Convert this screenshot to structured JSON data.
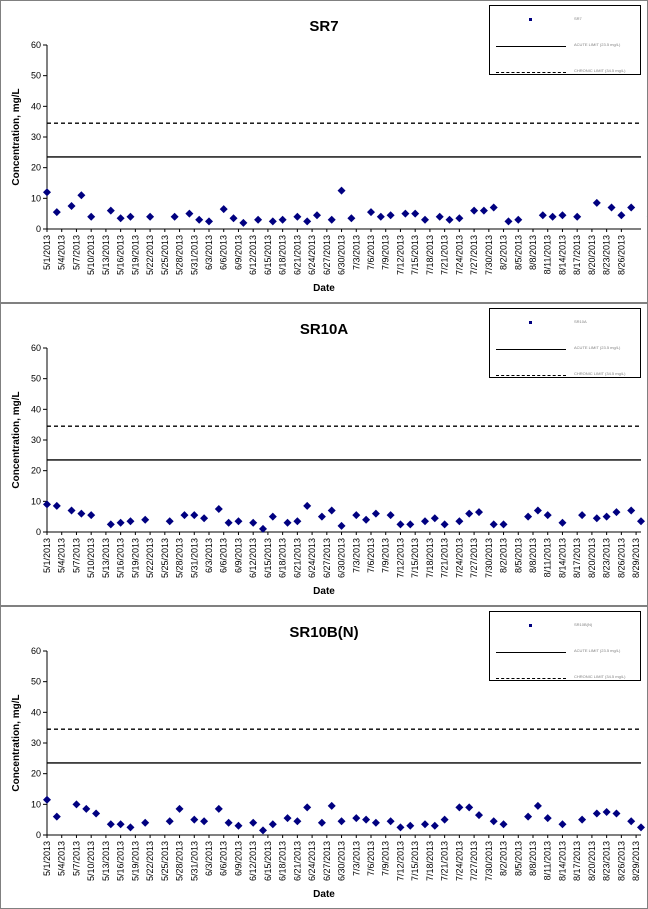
{
  "chart_data": [
    {
      "type": "scatter",
      "title": "SR7",
      "xlabel": "Date",
      "ylabel": "Concentration, mg/L",
      "ylim": [
        0,
        60
      ],
      "y_ticks": [
        "0",
        "10",
        "20",
        "30",
        "40",
        "50",
        "60"
      ],
      "x_tick_labels": [
        "5/1/2013",
        "5/4/2013",
        "5/7/2013",
        "5/10/2013",
        "5/13/2013",
        "5/16/2013",
        "5/19/2013",
        "5/22/2013",
        "5/25/2013",
        "5/28/2013",
        "5/31/2013",
        "6/3/2013",
        "6/6/2013",
        "6/9/2013",
        "6/12/2013",
        "6/15/2013",
        "6/18/2013",
        "6/21/2013",
        "6/24/2013",
        "6/27/2013",
        "6/30/2013",
        "7/3/2013",
        "7/6/2013",
        "7/9/2013",
        "7/12/2013",
        "7/15/2013",
        "7/18/2013",
        "7/21/2013",
        "7/24/2013",
        "7/27/2013",
        "7/30/2013",
        "8/2/2013",
        "8/5/2013",
        "8/8/2013",
        "8/11/2013",
        "8/14/2013",
        "8/17/2013",
        "8/20/2013",
        "8/23/2013",
        "8/26/2013"
      ],
      "x_range": [
        "5/1/2013",
        "8/30/2013"
      ],
      "marker_color": "#000080",
      "series": [
        {
          "points": [
            [
              "5/1/2013",
              12
            ],
            [
              "5/3/2013",
              5.5
            ],
            [
              "5/6/2013",
              7.5
            ],
            [
              "5/8/2013",
              11
            ],
            [
              "5/10/2013",
              4
            ],
            [
              "5/14/2013",
              6
            ],
            [
              "5/16/2013",
              3.5
            ],
            [
              "5/18/2013",
              4
            ],
            [
              "5/22/2013",
              4
            ],
            [
              "5/27/2013",
              4
            ],
            [
              "5/30/2013",
              5
            ],
            [
              "6/1/2013",
              3
            ],
            [
              "6/3/2013",
              2.5
            ],
            [
              "6/6/2013",
              6.5
            ],
            [
              "6/8/2013",
              3.5
            ],
            [
              "6/10/2013",
              2
            ],
            [
              "6/13/2013",
              3
            ],
            [
              "6/16/2013",
              2.5
            ],
            [
              "6/18/2013",
              3
            ],
            [
              "6/21/2013",
              4
            ],
            [
              "6/23/2013",
              2.5
            ],
            [
              "6/25/2013",
              4.5
            ],
            [
              "6/28/2013",
              3
            ],
            [
              "6/30/2013",
              12.5
            ],
            [
              "7/2/2013",
              3.5
            ],
            [
              "7/6/2013",
              5.5
            ],
            [
              "7/8/2013",
              4
            ],
            [
              "7/10/2013",
              4.5
            ],
            [
              "7/13/2013",
              5
            ],
            [
              "7/15/2013",
              5
            ],
            [
              "7/17/2013",
              3
            ],
            [
              "7/20/2013",
              4
            ],
            [
              "7/22/2013",
              3
            ],
            [
              "7/24/2013",
              3.5
            ],
            [
              "7/27/2013",
              6
            ],
            [
              "7/29/2013",
              6
            ],
            [
              "7/31/2013",
              7
            ],
            [
              "8/3/2013",
              2.5
            ],
            [
              "8/5/2013",
              3
            ],
            [
              "8/10/2013",
              4.5
            ],
            [
              "8/12/2013",
              4
            ],
            [
              "8/14/2013",
              4.5
            ],
            [
              "8/17/2013",
              4
            ],
            [
              "8/21/2013",
              8.5
            ],
            [
              "8/24/2013",
              7
            ],
            [
              "8/26/2013",
              4.5
            ],
            [
              "8/28/2013",
              7
            ],
            [
              "9/1/2013",
              4
            ],
            [
              "9/3/2013",
              5.5
            ]
          ]
        }
      ],
      "reference_lines": [
        {
          "value": 23.5,
          "style": "solid"
        },
        {
          "value": 34.5,
          "style": "dashed"
        }
      ],
      "legend_placement": "top-right",
      "legend_entries": [
        "SR7",
        "ACUTE LIMIT (23.5 mg/L)",
        "CHRONIC LIMIT (34.5 mg/L)"
      ]
    },
    {
      "type": "scatter",
      "title": "SR10A",
      "xlabel": "Date",
      "ylabel": "Concentration, mg/L",
      "ylim": [
        0,
        60
      ],
      "y_ticks": [
        "0",
        "10",
        "20",
        "30",
        "40",
        "50",
        "60"
      ],
      "x_tick_labels": [
        "5/1/2013",
        "5/4/2013",
        "5/7/2013",
        "5/10/2013",
        "5/13/2013",
        "5/16/2013",
        "5/19/2013",
        "5/22/2013",
        "5/25/2013",
        "5/28/2013",
        "5/31/2013",
        "6/3/2013",
        "6/6/2013",
        "6/9/2013",
        "6/12/2013",
        "6/15/2013",
        "6/18/2013",
        "6/21/2013",
        "6/24/2013",
        "6/27/2013",
        "6/30/2013",
        "7/3/2013",
        "7/6/2013",
        "7/9/2013",
        "7/12/2013",
        "7/15/2013",
        "7/18/2013",
        "7/21/2013",
        "7/24/2013",
        "7/27/2013",
        "7/30/2013",
        "8/2/2013",
        "8/5/2013",
        "8/8/2013",
        "8/11/2013",
        "8/14/2013",
        "8/17/2013",
        "8/20/2013",
        "8/23/2013",
        "8/26/2013",
        "8/29/2013"
      ],
      "x_range": [
        "5/1/2013",
        "8/30/2013"
      ],
      "marker_color": "#000080",
      "series": [
        {
          "points": [
            [
              "5/1/2013",
              9
            ],
            [
              "5/3/2013",
              8.5
            ],
            [
              "5/6/2013",
              7
            ],
            [
              "5/8/2013",
              6
            ],
            [
              "5/10/2013",
              5.5
            ],
            [
              "5/14/2013",
              2.5
            ],
            [
              "5/16/2013",
              3
            ],
            [
              "5/18/2013",
              3.5
            ],
            [
              "5/21/2013",
              4
            ],
            [
              "5/26/2013",
              3.5
            ],
            [
              "5/29/2013",
              5.5
            ],
            [
              "5/31/2013",
              5.5
            ],
            [
              "6/2/2013",
              4.5
            ],
            [
              "6/5/2013",
              7.5
            ],
            [
              "6/7/2013",
              3
            ],
            [
              "6/9/2013",
              3.5
            ],
            [
              "6/12/2013",
              3
            ],
            [
              "6/14/2013",
              1
            ],
            [
              "6/16/2013",
              5
            ],
            [
              "6/19/2013",
              3
            ],
            [
              "6/21/2013",
              3.5
            ],
            [
              "6/23/2013",
              8.5
            ],
            [
              "6/26/2013",
              5
            ],
            [
              "6/28/2013",
              7
            ],
            [
              "6/30/2013",
              2
            ],
            [
              "7/3/2013",
              5.5
            ],
            [
              "7/5/2013",
              4
            ],
            [
              "7/7/2013",
              6
            ],
            [
              "7/10/2013",
              5.5
            ],
            [
              "7/12/2013",
              2.5
            ],
            [
              "7/14/2013",
              2.5
            ],
            [
              "7/17/2013",
              3.5
            ],
            [
              "7/19/2013",
              4.5
            ],
            [
              "7/21/2013",
              2.5
            ],
            [
              "7/24/2013",
              3.5
            ],
            [
              "7/26/2013",
              6
            ],
            [
              "7/28/2013",
              6.5
            ],
            [
              "7/31/2013",
              2.5
            ],
            [
              "8/2/2013",
              2.5
            ],
            [
              "8/7/2013",
              5
            ],
            [
              "8/9/2013",
              7
            ],
            [
              "8/11/2013",
              5.5
            ],
            [
              "8/14/2013",
              3
            ],
            [
              "8/18/2013",
              5.5
            ],
            [
              "8/21/2013",
              4.5
            ],
            [
              "8/23/2013",
              5
            ],
            [
              "8/25/2013",
              6.5
            ],
            [
              "8/28/2013",
              7
            ],
            [
              "8/30/2013",
              3.5
            ],
            [
              "9/1/2013",
              2.5
            ]
          ]
        }
      ],
      "reference_lines": [
        {
          "value": 23.5,
          "style": "solid"
        },
        {
          "value": 34.5,
          "style": "dashed"
        }
      ],
      "legend_placement": "top-right",
      "legend_entries": [
        "SR10A",
        "ACUTE LIMIT (23.5 mg/L)",
        "CHRONIC LIMIT (34.5 mg/L)"
      ]
    },
    {
      "type": "scatter",
      "title": "SR10B(N)",
      "xlabel": "Date",
      "ylabel": "Concentration, mg/L",
      "ylim": [
        0,
        60
      ],
      "y_ticks": [
        "0",
        "10",
        "20",
        "30",
        "40",
        "50",
        "60"
      ],
      "x_tick_labels": [
        "5/1/2013",
        "5/4/2013",
        "5/7/2013",
        "5/10/2013",
        "5/13/2013",
        "5/16/2013",
        "5/19/2013",
        "5/22/2013",
        "5/25/2013",
        "5/28/2013",
        "5/31/2013",
        "6/3/2013",
        "6/6/2013",
        "6/9/2013",
        "6/12/2013",
        "6/15/2013",
        "6/18/2013",
        "6/21/2013",
        "6/24/2013",
        "6/27/2013",
        "6/30/2013",
        "7/3/2013",
        "7/6/2013",
        "7/9/2013",
        "7/12/2013",
        "7/15/2013",
        "7/18/2013",
        "7/21/2013",
        "7/24/2013",
        "7/27/2013",
        "7/30/2013",
        "8/2/2013",
        "8/5/2013",
        "8/8/2013",
        "8/11/2013",
        "8/14/2013",
        "8/17/2013",
        "8/20/2013",
        "8/23/2013",
        "8/26/2013",
        "8/29/2013"
      ],
      "x_range": [
        "5/1/2013",
        "8/30/2013"
      ],
      "marker_color": "#000080",
      "series": [
        {
          "points": [
            [
              "5/1/2013",
              11.5
            ],
            [
              "5/3/2013",
              6
            ],
            [
              "5/7/2013",
              10
            ],
            [
              "5/9/2013",
              8.5
            ],
            [
              "5/11/2013",
              7
            ],
            [
              "5/14/2013",
              3.5
            ],
            [
              "5/16/2013",
              3.5
            ],
            [
              "5/18/2013",
              2.5
            ],
            [
              "5/21/2013",
              4
            ],
            [
              "5/26/2013",
              4.5
            ],
            [
              "5/28/2013",
              8.5
            ],
            [
              "5/31/2013",
              5
            ],
            [
              "6/2/2013",
              4.5
            ],
            [
              "6/5/2013",
              8.5
            ],
            [
              "6/7/2013",
              4
            ],
            [
              "6/9/2013",
              3
            ],
            [
              "6/12/2013",
              4
            ],
            [
              "6/14/2013",
              1.5
            ],
            [
              "6/16/2013",
              3.5
            ],
            [
              "6/19/2013",
              5.5
            ],
            [
              "6/21/2013",
              4.5
            ],
            [
              "6/23/2013",
              9
            ],
            [
              "6/26/2013",
              4
            ],
            [
              "6/28/2013",
              9.5
            ],
            [
              "6/30/2013",
              4.5
            ],
            [
              "7/3/2013",
              5.5
            ],
            [
              "7/5/2013",
              5
            ],
            [
              "7/7/2013",
              4
            ],
            [
              "7/10/2013",
              4.5
            ],
            [
              "7/12/2013",
              2.5
            ],
            [
              "7/14/2013",
              3
            ],
            [
              "7/17/2013",
              3.5
            ],
            [
              "7/19/2013",
              3
            ],
            [
              "7/21/2013",
              5
            ],
            [
              "7/24/2013",
              9
            ],
            [
              "7/26/2013",
              9
            ],
            [
              "7/28/2013",
              6.5
            ],
            [
              "7/31/2013",
              4.5
            ],
            [
              "8/2/2013",
              3.5
            ],
            [
              "8/7/2013",
              6
            ],
            [
              "8/9/2013",
              9.5
            ],
            [
              "8/11/2013",
              5.5
            ],
            [
              "8/14/2013",
              3.5
            ],
            [
              "8/18/2013",
              5
            ],
            [
              "8/21/2013",
              7
            ],
            [
              "8/23/2013",
              7.5
            ],
            [
              "8/25/2013",
              7
            ],
            [
              "8/28/2013",
              4.5
            ],
            [
              "8/30/2013",
              2.5
            ],
            [
              "9/1/2013",
              3.5
            ]
          ]
        }
      ],
      "reference_lines": [
        {
          "value": 23.5,
          "style": "solid"
        },
        {
          "value": 34.5,
          "style": "dashed"
        }
      ],
      "legend_placement": "top-right",
      "legend_entries": [
        "SR10B(N)",
        "ACUTE LIMIT (23.5 mg/L)",
        "CHRONIC LIMIT (34.5 mg/L)"
      ]
    }
  ]
}
